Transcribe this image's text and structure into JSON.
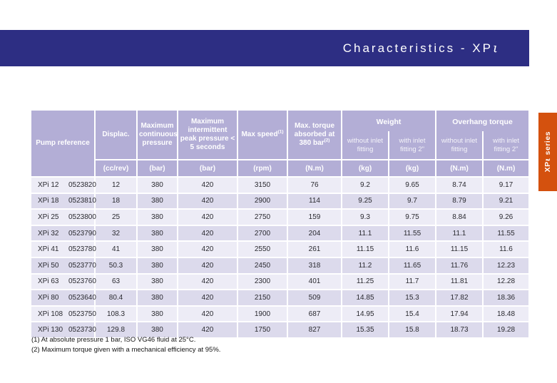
{
  "page": {
    "title_prefix": "Characteristics - XP",
    "title_glyph": "ι"
  },
  "side_tab": {
    "prefix": "XP",
    "glyph": "ι",
    "suffix": " series"
  },
  "colors": {
    "title_bar": "#2d2e83",
    "table_header": "#b3aed6",
    "row_light": "#edecf6",
    "row_dark": "#dcdaec",
    "side_tab": "#d4510e"
  },
  "table": {
    "headers": {
      "pump_reference": "Pump reference",
      "displacement": "Displac.",
      "max_continuous_pressure": "Maximum continuous pressure",
      "max_intermittent_pressure": "Maximum intermittent peak pressure < 5 seconds",
      "max_speed": "Max speed",
      "max_speed_sup": "(1)",
      "max_torque": "Max. torque absorbed at 380 bar",
      "max_torque_sup": "(2)",
      "weight_group": "Weight",
      "overhang_group": "Overhang torque",
      "weight_without": "without inlet fitting",
      "weight_with": "with inlet fitting 2\"",
      "overhang_without": "without inlet fitting",
      "overhang_with": "with inlet fitting 2\""
    },
    "units": {
      "displacement": "(cc/rev)",
      "continuous_pressure": "(bar)",
      "peak_pressure": "(bar)",
      "speed": "(rpm)",
      "torque": "(N.m)",
      "weight_without": "(kg)",
      "weight_with": "(kg)",
      "overhang_without": "(N.m)",
      "overhang_with": "(N.m)"
    },
    "rows": [
      {
        "model": "XPi 12",
        "code": "0523820",
        "displacement": "12",
        "max_cont_pressure": "380",
        "max_peak_pressure": "420",
        "max_speed": "3150",
        "max_torque": "76",
        "weight_without": "9.2",
        "weight_with": "9.65",
        "overhang_without": "8.74",
        "overhang_with": "9.17"
      },
      {
        "model": "XPi 18",
        "code": "0523810",
        "displacement": "18",
        "max_cont_pressure": "380",
        "max_peak_pressure": "420",
        "max_speed": "2900",
        "max_torque": "114",
        "weight_without": "9.25",
        "weight_with": "9.7",
        "overhang_without": "8.79",
        "overhang_with": "9.21"
      },
      {
        "model": "XPi 25",
        "code": "0523800",
        "displacement": "25",
        "max_cont_pressure": "380",
        "max_peak_pressure": "420",
        "max_speed": "2750",
        "max_torque": "159",
        "weight_without": "9.3",
        "weight_with": "9.75",
        "overhang_without": "8.84",
        "overhang_with": "9.26"
      },
      {
        "model": "XPi 32",
        "code": "0523790",
        "displacement": "32",
        "max_cont_pressure": "380",
        "max_peak_pressure": "420",
        "max_speed": "2700",
        "max_torque": "204",
        "weight_without": "11.1",
        "weight_with": "11.55",
        "overhang_without": "11.1",
        "overhang_with": "11.55"
      },
      {
        "model": "XPi 41",
        "code": "0523780",
        "displacement": "41",
        "max_cont_pressure": "380",
        "max_peak_pressure": "420",
        "max_speed": "2550",
        "max_torque": "261",
        "weight_without": "11.15",
        "weight_with": "11.6",
        "overhang_without": "11.15",
        "overhang_with": "11.6"
      },
      {
        "model": "XPi 50",
        "code": "0523770",
        "displacement": "50.3",
        "max_cont_pressure": "380",
        "max_peak_pressure": "420",
        "max_speed": "2450",
        "max_torque": "318",
        "weight_without": "11.2",
        "weight_with": "11.65",
        "overhang_without": "11.76",
        "overhang_with": "12.23"
      },
      {
        "model": "XPi 63",
        "code": "0523760",
        "displacement": "63",
        "max_cont_pressure": "380",
        "max_peak_pressure": "420",
        "max_speed": "2300",
        "max_torque": "401",
        "weight_without": "11.25",
        "weight_with": "11.7",
        "overhang_without": "11.81",
        "overhang_with": "12.28"
      },
      {
        "model": "XPi 80",
        "code": "0523640",
        "displacement": "80.4",
        "max_cont_pressure": "380",
        "max_peak_pressure": "420",
        "max_speed": "2150",
        "max_torque": "509",
        "weight_without": "14.85",
        "weight_with": "15.3",
        "overhang_without": "17.82",
        "overhang_with": "18.36"
      },
      {
        "model": "XPi 108",
        "code": "0523750",
        "displacement": "108.3",
        "max_cont_pressure": "380",
        "max_peak_pressure": "420",
        "max_speed": "1900",
        "max_torque": "687",
        "weight_without": "14.95",
        "weight_with": "15.4",
        "overhang_without": "17.94",
        "overhang_with": "18.48"
      },
      {
        "model": "XPi 130",
        "code": "0523730",
        "displacement": "129.8",
        "max_cont_pressure": "380",
        "max_peak_pressure": "420",
        "max_speed": "1750",
        "max_torque": "827",
        "weight_without": "15.35",
        "weight_with": "15.8",
        "overhang_without": "18.73",
        "overhang_with": "19.28"
      }
    ]
  },
  "footnotes": {
    "note1": "(1) At absolute pressure 1 bar, ISO VG46 fluid at 25°C.",
    "note2": "(2) Maximum torque given with a mechanical efficiency at 95%."
  }
}
